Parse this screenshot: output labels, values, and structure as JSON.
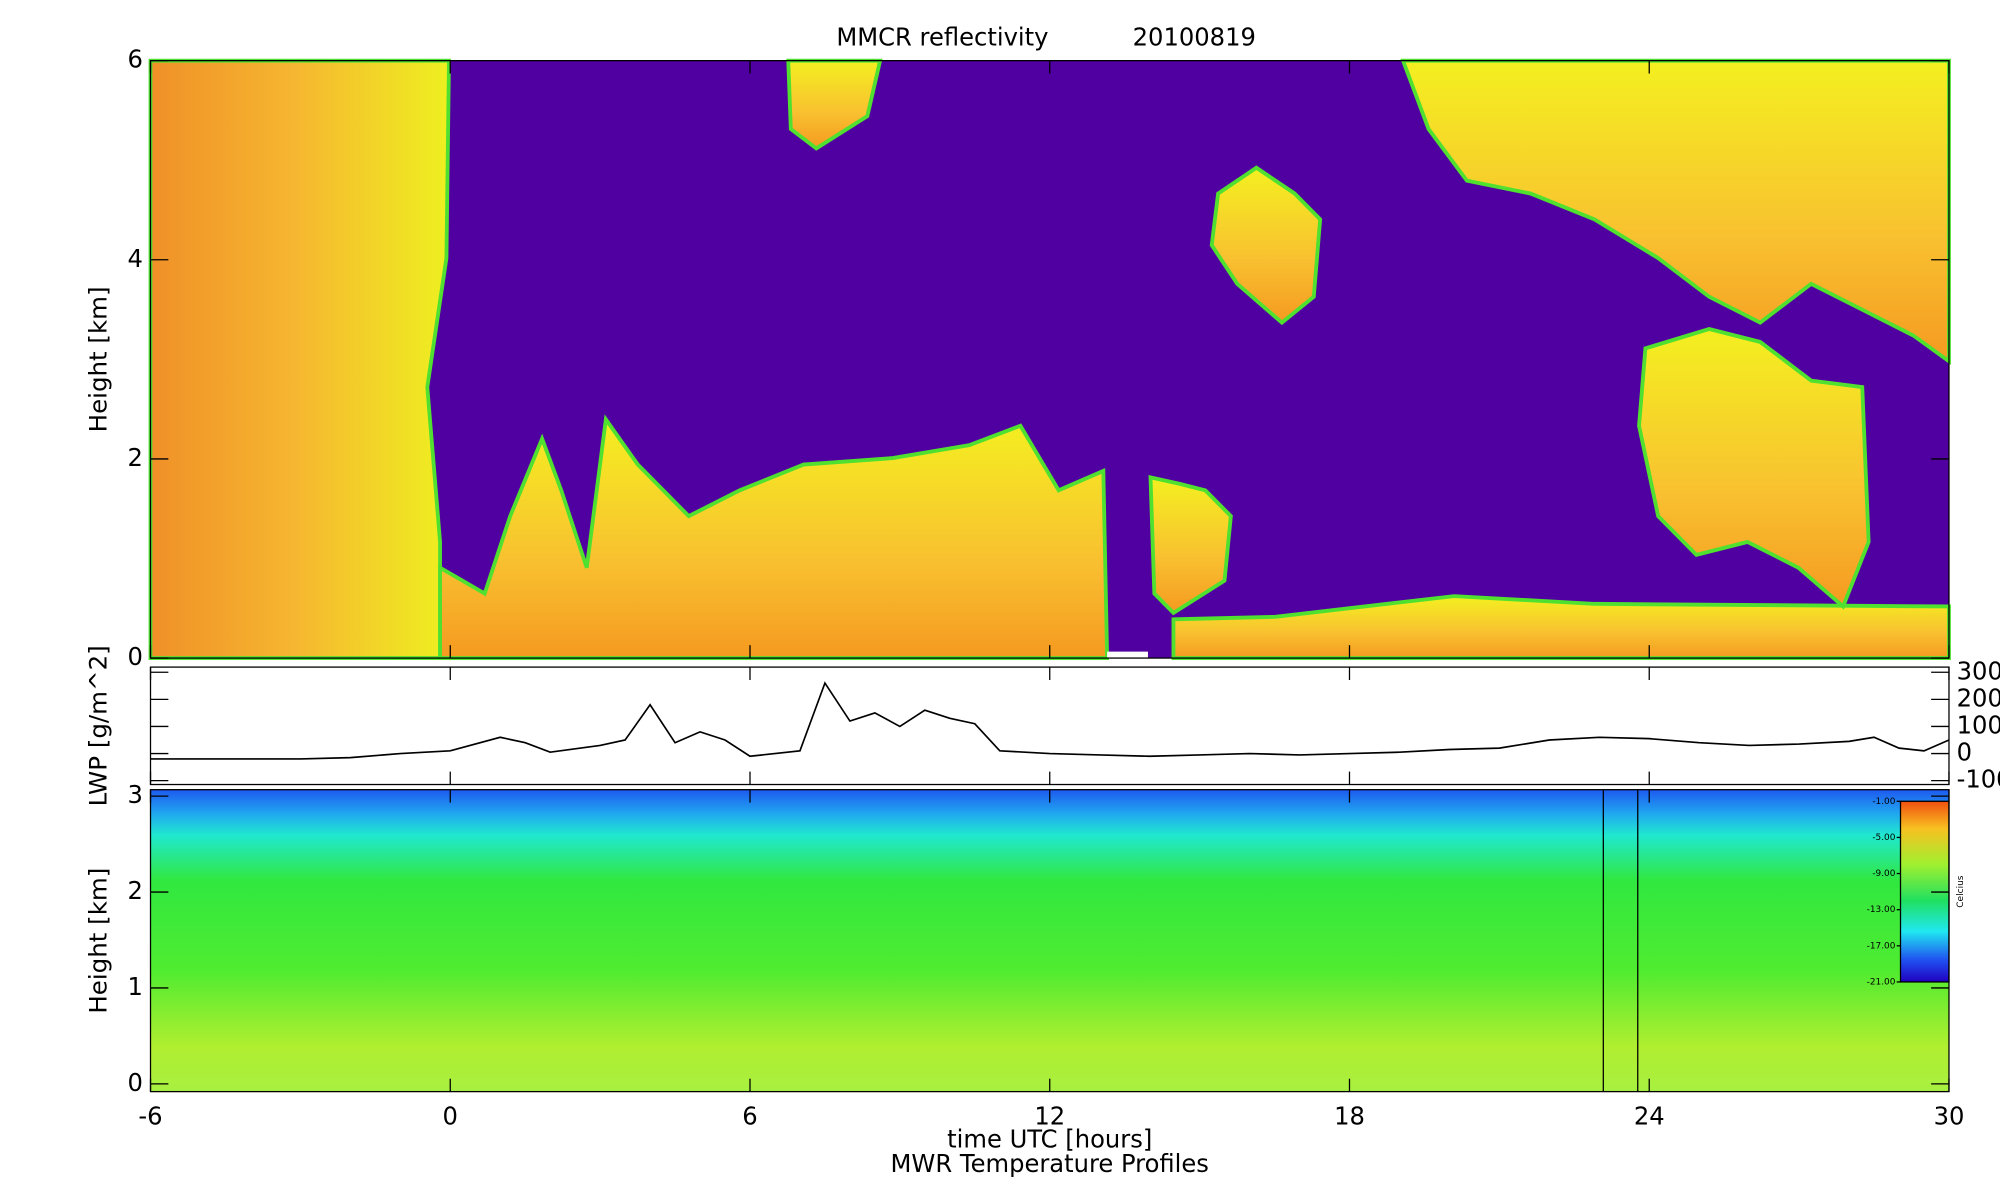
{
  "chart_data": [
    {
      "type": "heatmap",
      "title": "MMCR reflectivity",
      "date": "20100819",
      "ylabel": "Height [km]",
      "xlim": [
        -6,
        30
      ],
      "xticks": [
        -6,
        0,
        6,
        12,
        18,
        24,
        30
      ],
      "ylim": [
        0,
        6
      ],
      "yticks": [
        0,
        2,
        4,
        6
      ]
    },
    {
      "type": "line",
      "ylabel": "LWP [g/m^2]",
      "yaxis_side": "right",
      "xlim": [
        -6,
        30
      ],
      "xticks": [
        -6,
        0,
        6,
        12,
        18,
        24,
        30
      ],
      "ylim": [
        -100,
        300
      ],
      "yticks": [
        300,
        200,
        100,
        0,
        -100
      ],
      "color": "#000000",
      "x": [
        -6,
        -5,
        -4,
        -3,
        -2,
        -1,
        0,
        1,
        1.5,
        2,
        3,
        3.5,
        4,
        4.5,
        5,
        5.5,
        6,
        7,
        7.5,
        8,
        8.5,
        9,
        9.5,
        10,
        10.5,
        11,
        12,
        13,
        14,
        15,
        16,
        17,
        18,
        19,
        20,
        21,
        22,
        23,
        24,
        25,
        26,
        27,
        28,
        28.5,
        29,
        29.5,
        30
      ],
      "values": [
        -20,
        -20,
        -20,
        -20,
        -15,
        0,
        10,
        60,
        40,
        5,
        30,
        50,
        180,
        40,
        80,
        50,
        -10,
        10,
        260,
        120,
        150,
        100,
        160,
        130,
        110,
        10,
        0,
        -5,
        -10,
        -5,
        0,
        -5,
        0,
        5,
        15,
        20,
        50,
        60,
        55,
        40,
        30,
        35,
        45,
        60,
        20,
        10,
        50
      ]
    },
    {
      "type": "heatmap",
      "ylabel": "Height [km]",
      "xlabel": "time UTC [hours]",
      "subtitle": "MWR Temperature Profiles",
      "xlim": [
        -6,
        30
      ],
      "xticks": [
        -6,
        0,
        6,
        12,
        18,
        24,
        30
      ],
      "ylim": [
        0,
        3
      ],
      "yticks": [
        0,
        1,
        2,
        3
      ],
      "colorbar": {
        "label": "Celcius",
        "lim": [
          -21,
          -1
        ],
        "ticks": [
          {
            "value": -1,
            "label": "-1.00"
          },
          {
            "value": -5,
            "label": "-5.00"
          },
          {
            "value": -9,
            "label": "-9.00"
          },
          {
            "value": -13,
            "label": "-13.00"
          },
          {
            "value": -17,
            "label": "-17.00"
          },
          {
            "value": -21,
            "label": "-21.00"
          }
        ]
      }
    }
  ]
}
